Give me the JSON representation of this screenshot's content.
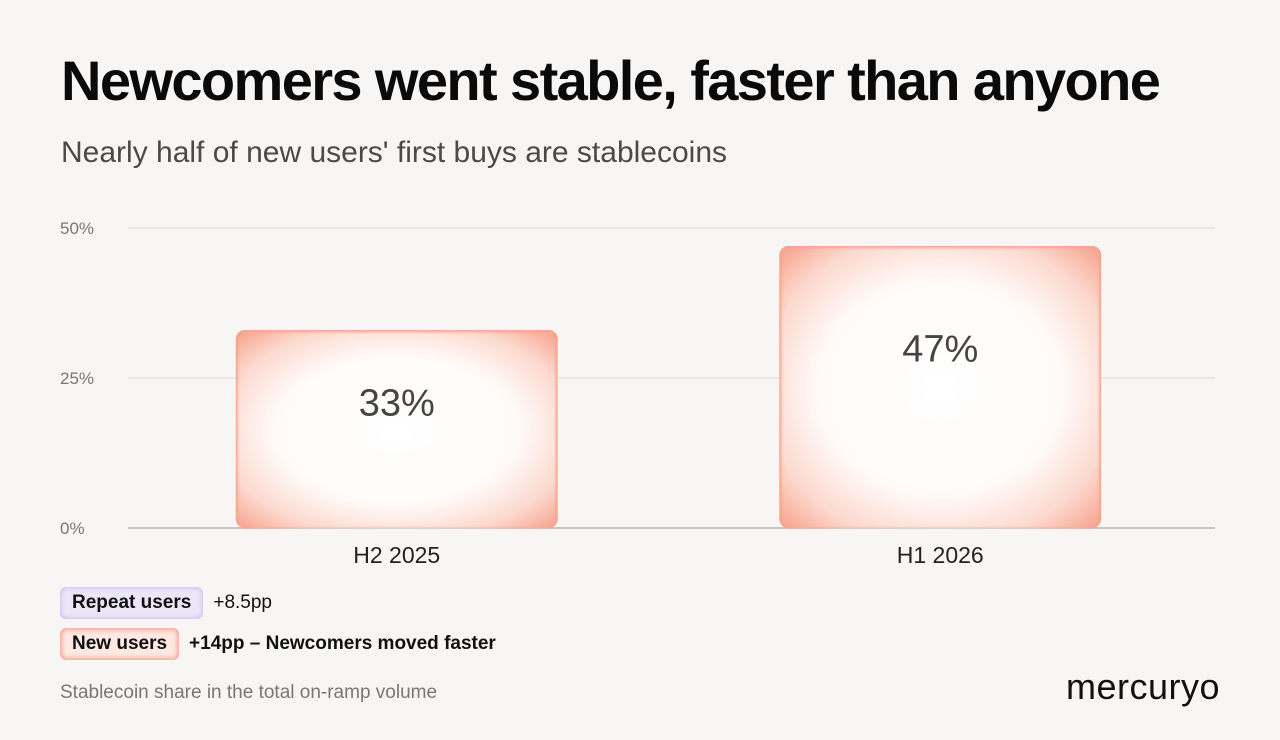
{
  "header": {
    "title": "Newcomers went stable, faster than anyone",
    "subtitle": "Nearly half of new users' first buys are stablecoins"
  },
  "chart_data": {
    "type": "bar",
    "categories": [
      "H2 2025",
      "H1 2026"
    ],
    "values": [
      33,
      47
    ],
    "value_labels": [
      "33%",
      "47%"
    ],
    "ylim": [
      0,
      50
    ],
    "yticks": [
      0,
      25,
      50
    ],
    "ytick_labels": [
      "0%",
      "25%",
      "50%"
    ],
    "grid": true,
    "bar_color": "#f7a48f"
  },
  "legend": {
    "repeat": {
      "label": "Repeat users",
      "delta": "+8.5pp",
      "color": "#c9bdee"
    },
    "new": {
      "label": "New users",
      "delta": "+14pp – Newcomers moved faster",
      "color": "#f5a592"
    }
  },
  "footnote": "Stablecoin share in the total on-ramp volume",
  "brand": "mercuryo"
}
